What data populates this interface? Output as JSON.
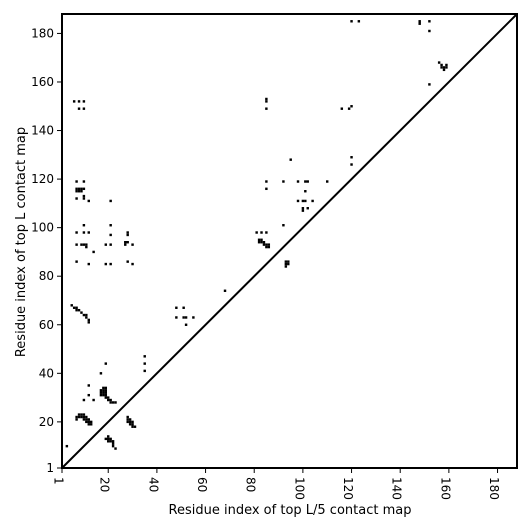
{
  "chart_data": {
    "type": "heatmap",
    "title": "",
    "xlabel": "Residue index of top L/5 contact map",
    "ylabel": "Residue index of top L contact map",
    "xlim": [
      1,
      188
    ],
    "ylim": [
      1,
      188
    ],
    "x_ticks": [
      1,
      20,
      40,
      60,
      80,
      100,
      120,
      140,
      160,
      180
    ],
    "y_ticks": [
      1,
      20,
      40,
      60,
      80,
      100,
      120,
      140,
      160,
      180
    ],
    "diagonal": true,
    "point_color": "#000000",
    "lower_triangle_contacts_top_L5": [
      [
        3,
        10
      ],
      [
        7,
        21
      ],
      [
        7,
        22
      ],
      [
        8,
        22
      ],
      [
        8,
        23
      ],
      [
        9,
        23
      ],
      [
        10,
        23
      ],
      [
        9,
        22
      ],
      [
        10,
        22
      ],
      [
        11,
        22
      ],
      [
        10,
        21
      ],
      [
        11,
        21
      ],
      [
        12,
        21
      ],
      [
        11,
        20
      ],
      [
        12,
        20
      ],
      [
        13,
        20
      ],
      [
        12,
        19
      ],
      [
        13,
        19
      ],
      [
        10,
        29
      ],
      [
        12,
        31
      ],
      [
        12,
        35
      ],
      [
        14,
        29
      ],
      [
        17,
        40
      ],
      [
        19,
        44
      ],
      [
        17,
        31
      ],
      [
        17,
        32
      ],
      [
        17,
        33
      ],
      [
        18,
        31
      ],
      [
        18,
        32
      ],
      [
        18,
        33
      ],
      [
        18,
        34
      ],
      [
        19,
        30
      ],
      [
        19,
        31
      ],
      [
        19,
        32
      ],
      [
        19,
        33
      ],
      [
        19,
        34
      ],
      [
        20,
        29
      ],
      [
        20,
        30
      ],
      [
        21,
        28
      ],
      [
        21,
        29
      ],
      [
        22,
        28
      ],
      [
        23,
        28
      ],
      [
        19,
        13
      ],
      [
        20,
        12
      ],
      [
        20,
        13
      ],
      [
        20,
        14
      ],
      [
        21,
        12
      ],
      [
        21,
        13
      ],
      [
        22,
        10
      ],
      [
        22,
        11
      ],
      [
        22,
        12
      ],
      [
        23,
        9
      ],
      [
        28,
        20
      ],
      [
        28,
        21
      ],
      [
        28,
        22
      ],
      [
        29,
        19
      ],
      [
        29,
        20
      ],
      [
        29,
        21
      ],
      [
        30,
        18
      ],
      [
        30,
        19
      ],
      [
        30,
        20
      ],
      [
        31,
        18
      ],
      [
        35,
        41
      ],
      [
        35,
        44
      ],
      [
        35,
        47
      ],
      [
        5,
        68
      ],
      [
        6,
        67
      ],
      [
        7,
        67
      ],
      [
        7,
        66
      ],
      [
        8,
        66
      ],
      [
        9,
        65
      ],
      [
        10,
        64
      ],
      [
        11,
        64
      ],
      [
        11,
        63
      ],
      [
        12,
        62
      ],
      [
        12,
        61
      ],
      [
        48,
        63
      ],
      [
        48,
        67
      ],
      [
        51,
        63
      ],
      [
        51,
        67
      ],
      [
        52,
        60
      ],
      [
        52,
        63
      ],
      [
        55,
        63
      ],
      [
        68,
        74
      ],
      [
        82,
        94
      ],
      [
        82,
        95
      ],
      [
        83,
        94
      ],
      [
        83,
        95
      ],
      [
        84,
        93
      ],
      [
        84,
        94
      ],
      [
        85,
        92
      ],
      [
        85,
        93
      ],
      [
        86,
        92
      ],
      [
        86,
        93
      ],
      [
        93,
        84
      ],
      [
        93,
        85
      ],
      [
        93,
        86
      ],
      [
        94,
        85
      ],
      [
        94,
        86
      ]
    ],
    "upper_triangle_contacts_top_L": [
      [
        6,
        152
      ],
      [
        8,
        149
      ],
      [
        8,
        152
      ],
      [
        10,
        149
      ],
      [
        10,
        152
      ],
      [
        7,
        86
      ],
      [
        7,
        93
      ],
      [
        7,
        98
      ],
      [
        7,
        112
      ],
      [
        7,
        119
      ],
      [
        7,
        115
      ],
      [
        7,
        116
      ],
      [
        8,
        115
      ],
      [
        8,
        116
      ],
      [
        9,
        115
      ],
      [
        9,
        116
      ],
      [
        10,
        112
      ],
      [
        10,
        113
      ],
      [
        10,
        116
      ],
      [
        10,
        119
      ],
      [
        12,
        111
      ],
      [
        9,
        93
      ],
      [
        10,
        93
      ],
      [
        11,
        93
      ],
      [
        11,
        92
      ],
      [
        10,
        101
      ],
      [
        10,
        98
      ],
      [
        12,
        98
      ],
      [
        12,
        85
      ],
      [
        14,
        90
      ],
      [
        19,
        85
      ],
      [
        19,
        93
      ],
      [
        21,
        85
      ],
      [
        21,
        93
      ],
      [
        21,
        97
      ],
      [
        21,
        101
      ],
      [
        21,
        111
      ],
      [
        27,
        93
      ],
      [
        27,
        94
      ],
      [
        28,
        94
      ],
      [
        28,
        97
      ],
      [
        28,
        98
      ],
      [
        28,
        86
      ],
      [
        30,
        85
      ],
      [
        30,
        93
      ],
      [
        81,
        98
      ],
      [
        83,
        98
      ],
      [
        85,
        98
      ],
      [
        85,
        116
      ],
      [
        85,
        119
      ],
      [
        85,
        149
      ],
      [
        85,
        152
      ],
      [
        85,
        153
      ],
      [
        92,
        101
      ],
      [
        92,
        119
      ],
      [
        95,
        128
      ],
      [
        98,
        111
      ],
      [
        98,
        119
      ],
      [
        100,
        107
      ],
      [
        100,
        108
      ],
      [
        100,
        111
      ],
      [
        101,
        111
      ],
      [
        101,
        115
      ],
      [
        101,
        119
      ],
      [
        102,
        108
      ],
      [
        102,
        119
      ],
      [
        104,
        111
      ],
      [
        110,
        119
      ],
      [
        116,
        149
      ],
      [
        119,
        149
      ],
      [
        120,
        150
      ],
      [
        120,
        126
      ],
      [
        120,
        129
      ],
      [
        120,
        185
      ],
      [
        123,
        185
      ],
      [
        148,
        184
      ],
      [
        148,
        185
      ],
      [
        152,
        185
      ],
      [
        152,
        181
      ],
      [
        152,
        159
      ],
      [
        156,
        168
      ],
      [
        157,
        167
      ],
      [
        157,
        166
      ],
      [
        158,
        166
      ],
      [
        158,
        165
      ],
      [
        159,
        167
      ],
      [
        159,
        166
      ]
    ]
  }
}
